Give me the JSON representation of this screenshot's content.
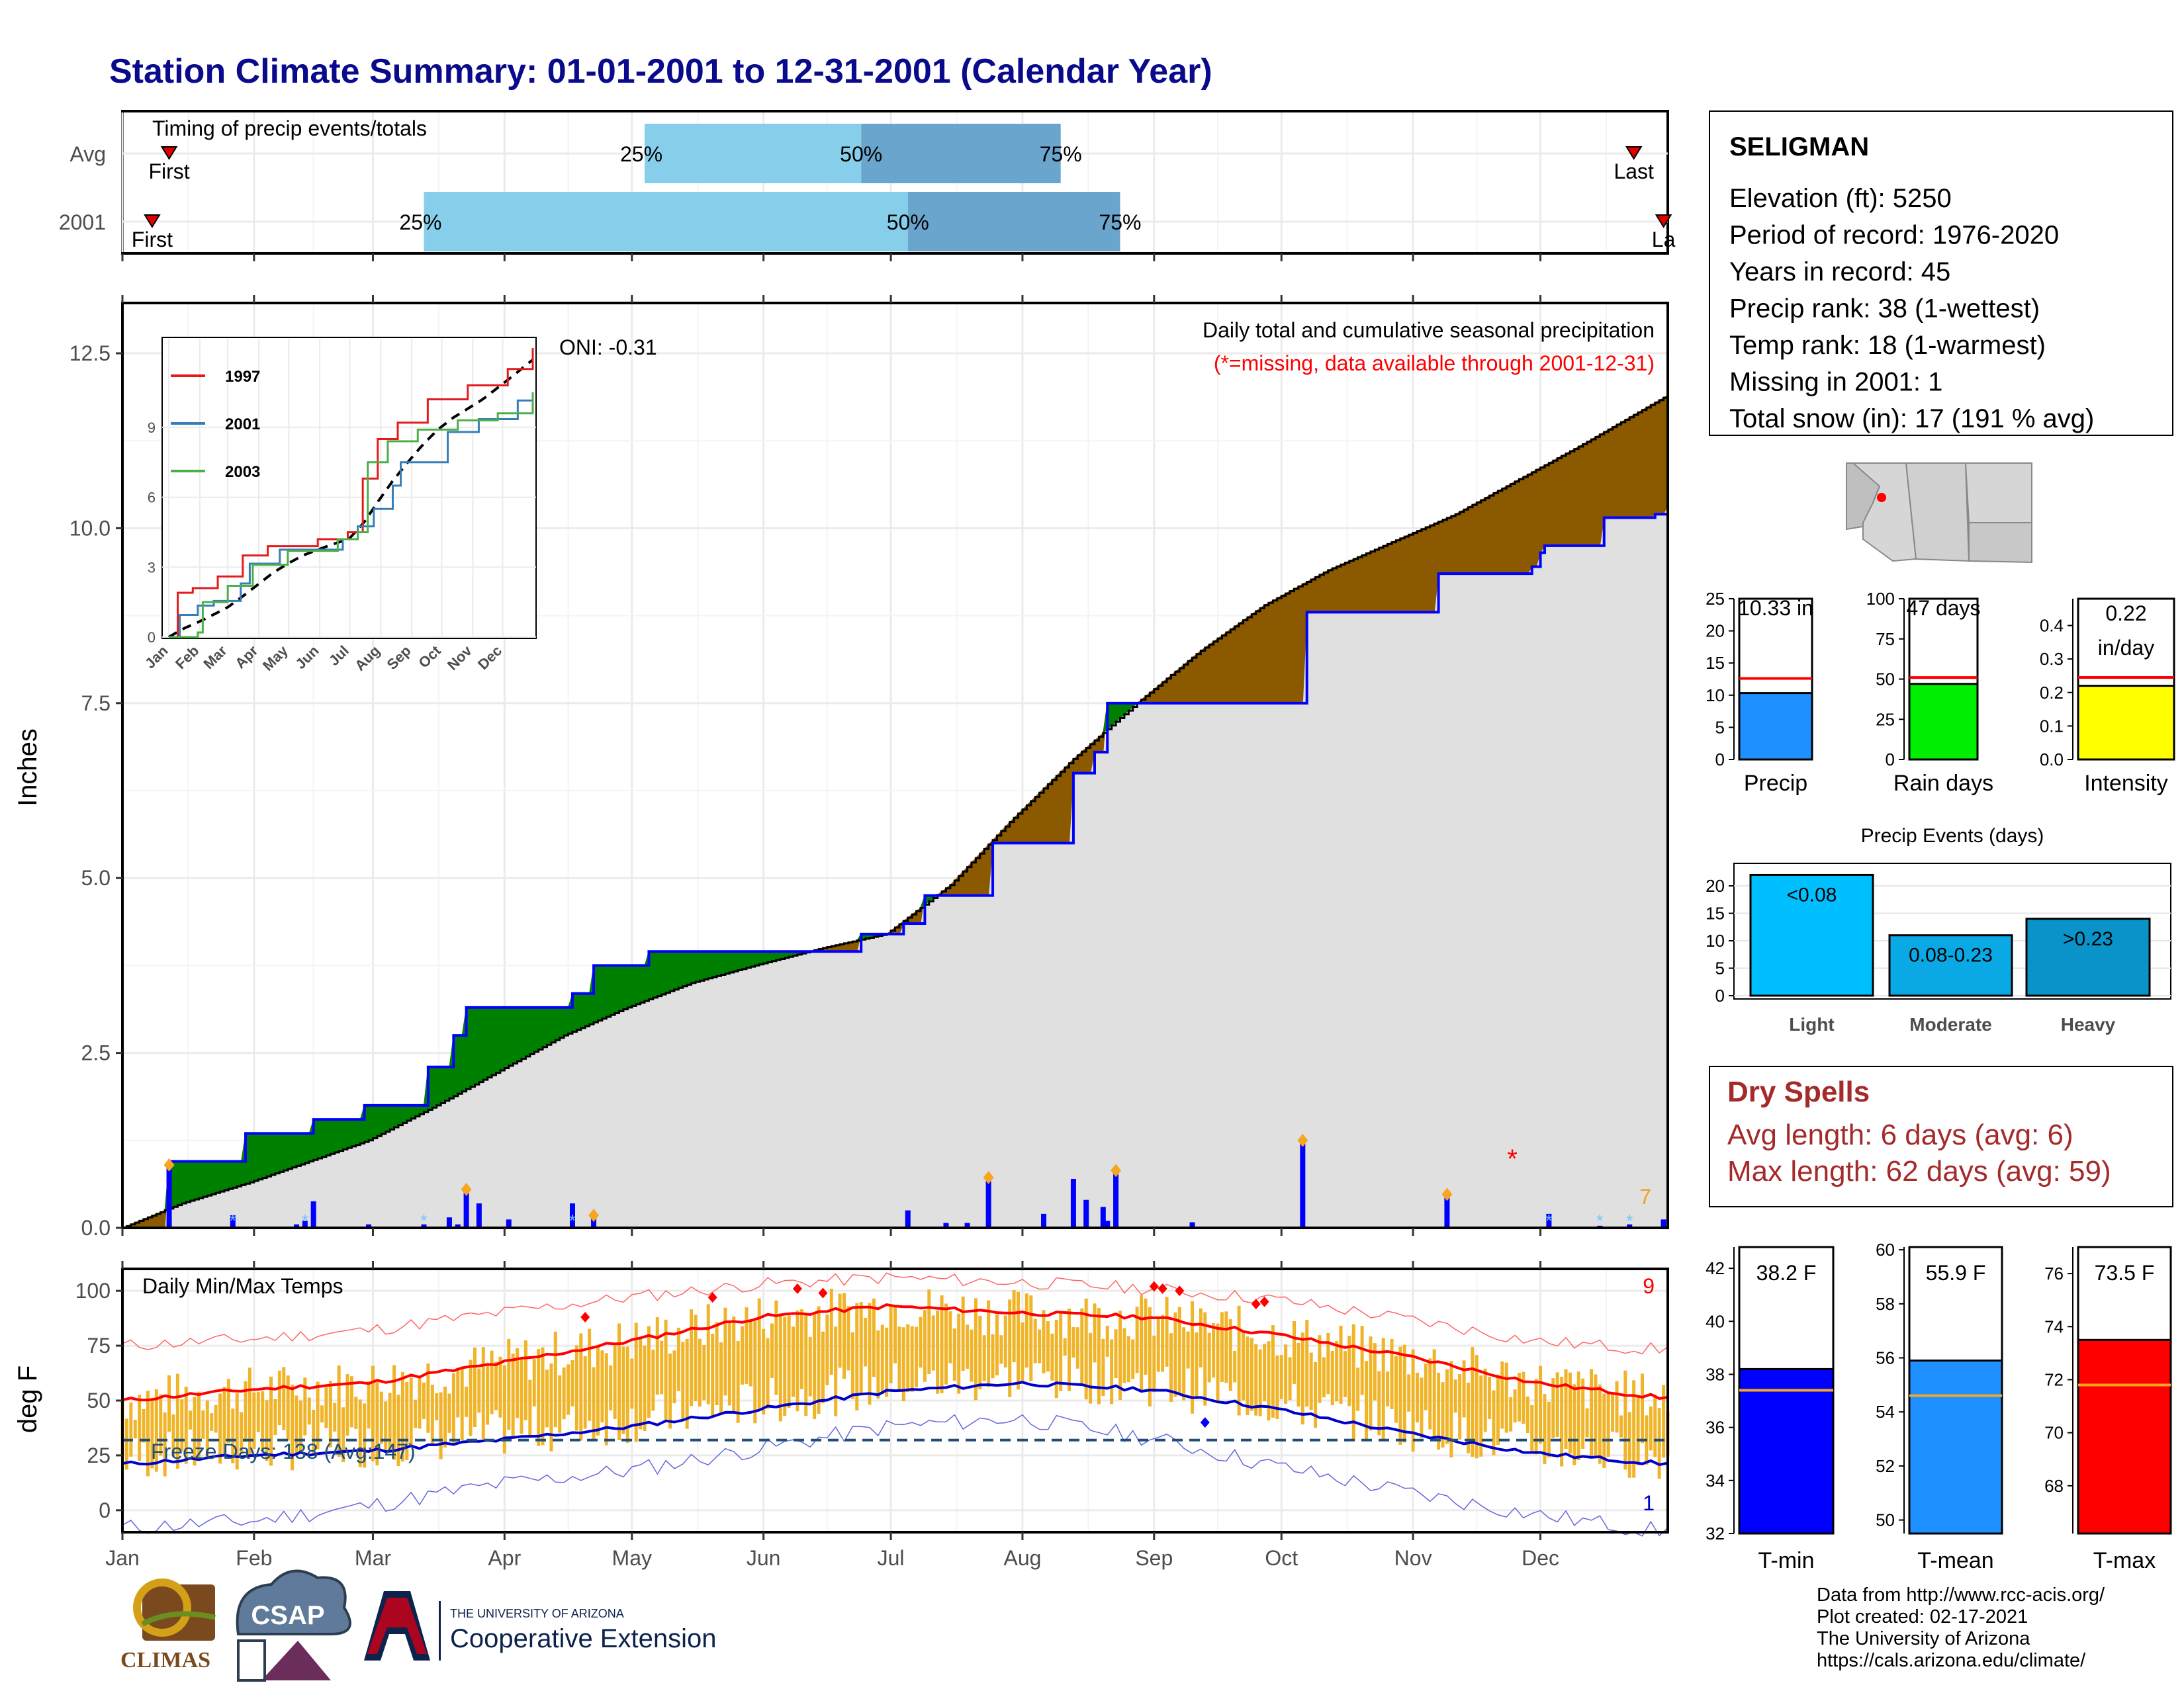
{
  "title": "Station Climate Summary: 01-01-2001 to 12-31-2001 (Calendar Year)",
  "colors": {
    "title": "#0a0a8c",
    "avg_cum": "#000000",
    "year_cum": "#0000ff",
    "excess_green": "#008000",
    "deficit_brown": "#8b5a00",
    "fill_grey": "#e0e0e0",
    "quartile_light": "#87ceeb",
    "quartile_dark": "#6aa5cd",
    "tmax": "#ff0000",
    "tmin": "#0000cc",
    "range_bar": "#f0b429",
    "freeze": "#1f4e79"
  },
  "timing_panel": {
    "label": "Timing of precip events/totals",
    "rows": [
      {
        "name": "Avg",
        "first_label": "First",
        "last_label": "Last",
        "p25": "25%",
        "p50": "50%",
        "p75": "75%",
        "first_doy": 12,
        "p25_doy": 124,
        "p50_doy": 175,
        "p75_doy": 222,
        "last_doy": 357
      },
      {
        "name": "2001",
        "first_label": "First",
        "last_label": "La",
        "p25": "25%",
        "p50": "50%",
        "p75": "75%",
        "first_doy": 8,
        "p25_doy": 72,
        "p50_doy": 186,
        "p75_doy": 236,
        "last_doy": 364
      }
    ]
  },
  "precip_panel": {
    "ylabel": "Inches",
    "note_title": "Daily total and cumulative seasonal precipitation",
    "note_missing": "(*=missing, data available through 2001-12-31)",
    "oni": "ONI: -0.31",
    "corner_count": "7",
    "yticks": [
      "0.0",
      "2.5",
      "5.0",
      "7.5",
      "10.0",
      "12.5"
    ],
    "inset": {
      "legend": [
        "1997",
        "2001",
        "2003"
      ],
      "yticks": [
        "0",
        "3",
        "6",
        "9"
      ],
      "xticks": [
        "Jan",
        "Feb",
        "Mar",
        "Apr",
        "May",
        "Jun",
        "Jul",
        "Aug",
        "Sep",
        "Oct",
        "Nov",
        "Dec"
      ],
      "colors": [
        "#e41a1c",
        "#377eb8",
        "#4daf4a"
      ]
    }
  },
  "temp_panel": {
    "ylabel": "deg F",
    "label": "Daily Min/Max Temps",
    "freeze_label": "Freeze Days: 138 (Avg:147)",
    "corner_max": "9",
    "corner_min": "1",
    "yticks": [
      "0",
      "25",
      "50",
      "75",
      "100"
    ]
  },
  "months": [
    "Jan",
    "Feb",
    "Mar",
    "Apr",
    "May",
    "Jun",
    "Jul",
    "Aug",
    "Sep",
    "Oct",
    "Nov",
    "Dec"
  ],
  "station": {
    "name": "SELIGMAN",
    "lines": [
      "Elevation (ft): 5250",
      "Period of record: 1976-2020",
      "Years in record: 45",
      "Precip rank: 38 (1-wettest)",
      "Temp rank: 18 (1-warmest)",
      "Missing in 2001: 1",
      "Total snow (in): 17 (191 % avg)"
    ]
  },
  "summary_bars": [
    {
      "label": "Precip",
      "value_text": "10.33 in",
      "value": 10.33,
      "avg": 12.6,
      "ymax": 25,
      "yticks": [
        "0",
        "5",
        "10",
        "15",
        "20",
        "25"
      ],
      "color": "#1e90ff"
    },
    {
      "label": "Rain days",
      "value_text": "47 days",
      "value": 47,
      "avg": 51,
      "ymax": 100,
      "yticks": [
        "0",
        "25",
        "50",
        "75",
        "100"
      ],
      "color": "#00ee00"
    },
    {
      "label": "Intensity",
      "value_text": "0.22 in/day",
      "value": 0.22,
      "avg": 0.245,
      "ymax": 0.48,
      "yticks": [
        "0.0",
        "0.1",
        "0.2",
        "0.3",
        "0.4"
      ],
      "color": "#ffff00"
    }
  ],
  "events": {
    "title": "Precip Events (days)",
    "yticks": [
      "0",
      "5",
      "10",
      "15",
      "20"
    ],
    "bars": [
      {
        "label": "Light",
        "inner": "<0.08",
        "value": 22,
        "color": "#00bfff"
      },
      {
        "label": "Moderate",
        "inner": "0.08-0.23",
        "value": 11,
        "color": "#0aa9e6"
      },
      {
        "label": "Heavy",
        "inner": ">0.23",
        "value": 14,
        "color": "#0a93c8"
      }
    ]
  },
  "dry_spells": {
    "title": "Dry Spells",
    "avg": "Avg length: 6 days (avg: 6)",
    "max": "Max length: 62 days (avg: 59)"
  },
  "temp_bars": [
    {
      "label": "T-min",
      "value_text": "38.2 F",
      "value": 38.2,
      "avg": 37.4,
      "ymin": 32,
      "ymax": 42.8,
      "yticks": [
        "32",
        "34",
        "36",
        "38",
        "40",
        "42"
      ],
      "color": "#0000ff"
    },
    {
      "label": "T-mean",
      "value_text": "55.9 F",
      "value": 55.9,
      "avg": 54.6,
      "ymin": 49.5,
      "ymax": 60.1,
      "yticks": [
        "50",
        "52",
        "54",
        "56",
        "58",
        "60"
      ],
      "color": "#1e90ff"
    },
    {
      "label": "T-max",
      "value_text": "73.5 F",
      "value": 73.5,
      "avg": 71.8,
      "ymin": 66.2,
      "ymax": 77,
      "yticks": [
        "68",
        "70",
        "72",
        "74",
        "76"
      ],
      "color": "#ff0000"
    }
  ],
  "credits": [
    "Data from http://www.rcc-acis.org/",
    "Plot created: 02-17-2021",
    "The University of Arizona",
    "https://cals.arizona.edu/climate/"
  ],
  "logos": {
    "climas": "CLIMAS",
    "csap": "CSAP",
    "ua_small": "THE UNIVERSITY OF ARIZONA",
    "ua_big": "Cooperative Extension"
  },
  "chart_data": {
    "type": "area",
    "title": "Station Climate Summary: 01-01-2001 to 12-31-2001 (Calendar Year)",
    "xlabel": "",
    "ylabel": "Inches",
    "ylim": [
      0,
      13.2
    ],
    "x_unit": "day of year",
    "avg_cumulative": [
      [
        1,
        0
      ],
      [
        15,
        0.35
      ],
      [
        31,
        0.65
      ],
      [
        45,
        0.95
      ],
      [
        59,
        1.25
      ],
      [
        75,
        1.75
      ],
      [
        90,
        2.25
      ],
      [
        105,
        2.75
      ],
      [
        120,
        3.15
      ],
      [
        135,
        3.5
      ],
      [
        150,
        3.75
      ],
      [
        166,
        4.0
      ],
      [
        181,
        4.2
      ],
      [
        196,
        4.9
      ],
      [
        210,
        5.8
      ],
      [
        225,
        6.7
      ],
      [
        240,
        7.5
      ],
      [
        255,
        8.25
      ],
      [
        270,
        8.9
      ],
      [
        285,
        9.4
      ],
      [
        300,
        9.8
      ],
      [
        315,
        10.2
      ],
      [
        330,
        10.7
      ],
      [
        345,
        11.2
      ],
      [
        365,
        11.9
      ]
    ],
    "year_cumulative": [
      [
        1,
        0
      ],
      [
        12,
        0.95
      ],
      [
        30,
        1.35
      ],
      [
        44,
        1.35
      ],
      [
        46,
        1.55
      ],
      [
        58,
        1.75
      ],
      [
        72,
        1.75
      ],
      [
        73,
        2.3
      ],
      [
        79,
        2.75
      ],
      [
        82,
        3.15
      ],
      [
        107,
        3.35
      ],
      [
        112,
        3.75
      ],
      [
        125,
        3.95
      ],
      [
        175,
        4.2
      ],
      [
        185,
        4.35
      ],
      [
        190,
        4.75
      ],
      [
        205,
        4.75
      ],
      [
        206,
        5.5
      ],
      [
        218,
        5.5
      ],
      [
        225,
        6.5
      ],
      [
        230,
        6.8
      ],
      [
        233,
        7.5
      ],
      [
        260,
        7.5
      ],
      [
        279,
        7.5
      ],
      [
        280,
        8.8
      ],
      [
        310,
        8.8
      ],
      [
        311,
        9.35
      ],
      [
        333,
        9.45
      ],
      [
        335,
        9.65
      ],
      [
        336,
        9.75
      ],
      [
        350,
        10.15
      ],
      [
        362,
        10.2
      ],
      [
        365,
        10.33
      ]
    ],
    "daily_precip": [
      [
        12,
        0.9
      ],
      [
        27,
        0.18
      ],
      [
        42,
        0.05
      ],
      [
        44,
        0.1
      ],
      [
        46,
        0.38
      ],
      [
        59,
        0.05
      ],
      [
        72,
        0.05
      ],
      [
        78,
        0.15
      ],
      [
        80,
        0.05
      ],
      [
        82,
        0.55
      ],
      [
        85,
        0.35
      ],
      [
        92,
        0.12
      ],
      [
        107,
        0.35
      ],
      [
        112,
        0.18
      ],
      [
        186,
        0.25
      ],
      [
        195,
        0.07
      ],
      [
        200,
        0.07
      ],
      [
        205,
        0.72
      ],
      [
        218,
        0.2
      ],
      [
        225,
        0.7
      ],
      [
        228,
        0.4
      ],
      [
        232,
        0.3
      ],
      [
        233,
        0.1
      ],
      [
        235,
        0.82
      ],
      [
        253,
        0.08
      ],
      [
        279,
        1.25
      ],
      [
        313,
        0.48
      ],
      [
        337,
        0.2
      ],
      [
        349,
        0.03
      ],
      [
        356,
        0.05
      ],
      [
        364,
        0.12
      ]
    ],
    "inset_series": [
      {
        "name": "1997",
        "values": [
          [
            1,
            0
          ],
          [
            10,
            1.9
          ],
          [
            25,
            2.1
          ],
          [
            50,
            2.6
          ],
          [
            75,
            3.5
          ],
          [
            100,
            3.9
          ],
          [
            150,
            4.2
          ],
          [
            180,
            4.5
          ],
          [
            195,
            6.8
          ],
          [
            210,
            8.5
          ],
          [
            230,
            9.2
          ],
          [
            260,
            10.2
          ],
          [
            300,
            10.8
          ],
          [
            340,
            11.5
          ],
          [
            365,
            12.4
          ]
        ]
      },
      {
        "name": "2001",
        "values": [
          [
            1,
            0
          ],
          [
            12,
            0.95
          ],
          [
            30,
            1.35
          ],
          [
            46,
            1.55
          ],
          [
            73,
            2.3
          ],
          [
            82,
            3.15
          ],
          [
            112,
            3.75
          ],
          [
            175,
            4.2
          ],
          [
            190,
            4.75
          ],
          [
            206,
            5.5
          ],
          [
            225,
            6.5
          ],
          [
            233,
            7.5
          ],
          [
            280,
            8.8
          ],
          [
            311,
            9.35
          ],
          [
            350,
            10.15
          ],
          [
            365,
            10.33
          ]
        ]
      },
      {
        "name": "2003",
        "values": [
          [
            1,
            0
          ],
          [
            30,
            0.2
          ],
          [
            35,
            1.5
          ],
          [
            60,
            2.2
          ],
          [
            85,
            3.1
          ],
          [
            120,
            3.7
          ],
          [
            170,
            4.2
          ],
          [
            190,
            4.5
          ],
          [
            200,
            7.5
          ],
          [
            220,
            8.4
          ],
          [
            250,
            8.9
          ],
          [
            290,
            9.3
          ],
          [
            330,
            9.6
          ],
          [
            365,
            10.5
          ]
        ]
      }
    ],
    "temps": {
      "tmax_avg": [
        [
          1,
          50
        ],
        [
          31,
          55
        ],
        [
          59,
          58
        ],
        [
          90,
          67
        ],
        [
          120,
          77
        ],
        [
          151,
          88
        ],
        [
          181,
          93
        ],
        [
          212,
          90
        ],
        [
          243,
          88
        ],
        [
          273,
          80
        ],
        [
          304,
          70
        ],
        [
          334,
          58
        ],
        [
          365,
          51
        ]
      ],
      "tmin_avg": [
        [
          1,
          21
        ],
        [
          31,
          25
        ],
        [
          59,
          27
        ],
        [
          90,
          32
        ],
        [
          120,
          38
        ],
        [
          151,
          46
        ],
        [
          181,
          54
        ],
        [
          212,
          58
        ],
        [
          243,
          55
        ],
        [
          273,
          46
        ],
        [
          304,
          35
        ],
        [
          334,
          26
        ],
        [
          365,
          21
        ]
      ],
      "record_max": [
        [
          1,
          75
        ],
        [
          31,
          78
        ],
        [
          59,
          82
        ],
        [
          90,
          90
        ],
        [
          120,
          97
        ],
        [
          151,
          103
        ],
        [
          181,
          106
        ],
        [
          212,
          104
        ],
        [
          243,
          101
        ],
        [
          273,
          96
        ],
        [
          304,
          87
        ],
        [
          334,
          77
        ],
        [
          365,
          73
        ]
      ],
      "record_min": [
        [
          1,
          -8
        ],
        [
          31,
          -5
        ],
        [
          59,
          2
        ],
        [
          90,
          12
        ],
        [
          120,
          18
        ],
        [
          151,
          28
        ],
        [
          181,
          38
        ],
        [
          212,
          42
        ],
        [
          243,
          33
        ],
        [
          273,
          20
        ],
        [
          304,
          8
        ],
        [
          334,
          -2
        ],
        [
          365,
          -10
        ]
      ],
      "freeze_line": 32,
      "ylim": [
        -10,
        110
      ]
    }
  }
}
